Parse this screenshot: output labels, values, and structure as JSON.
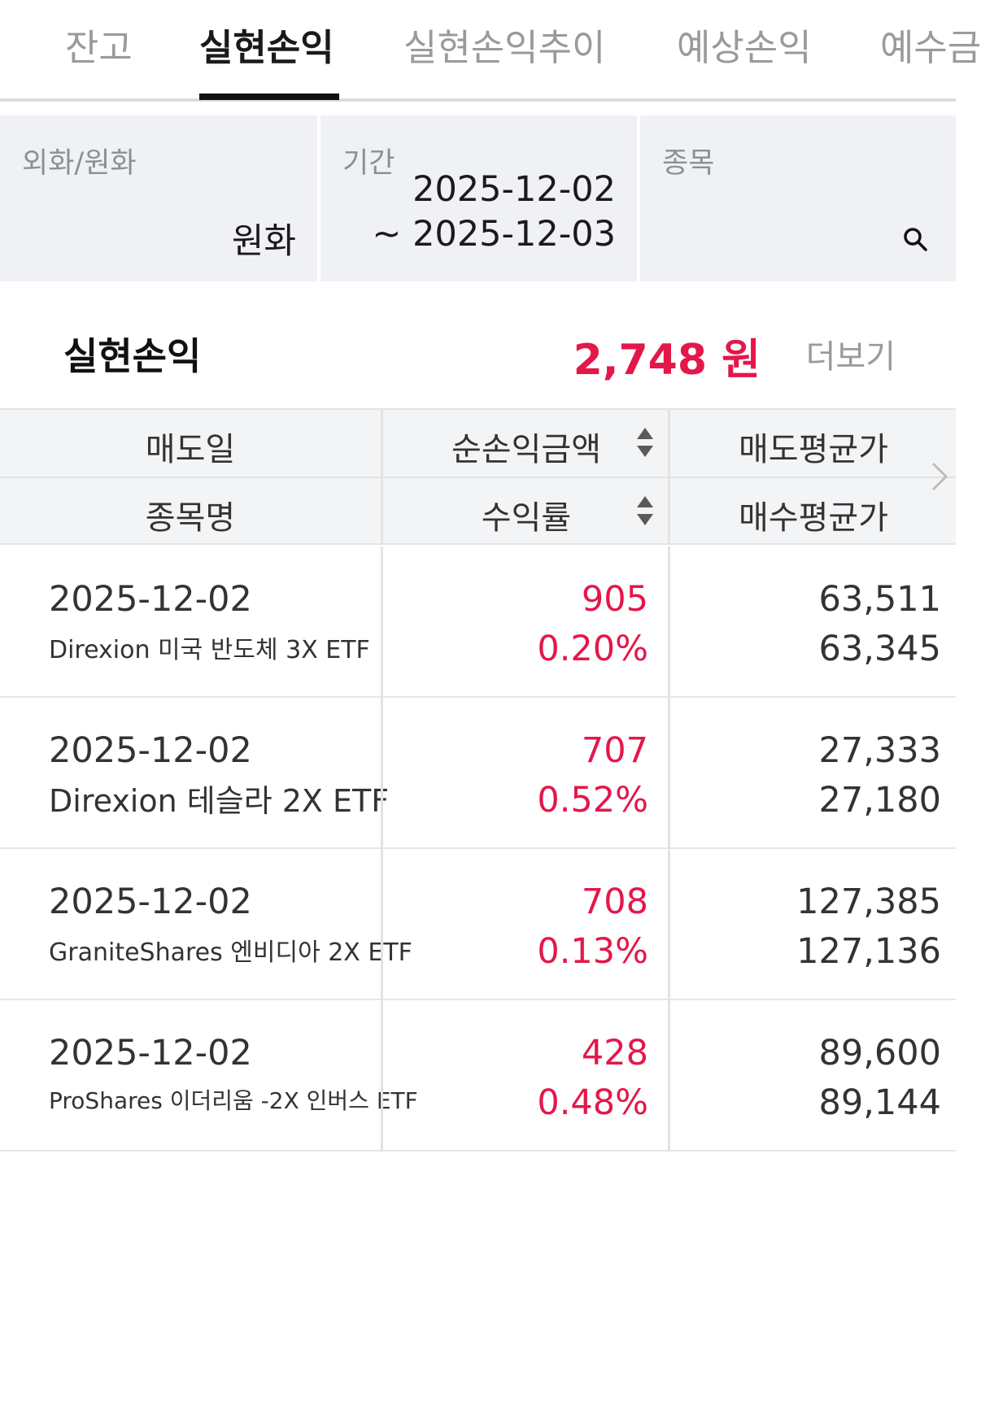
{
  "tabs": [
    {
      "label": "잔고",
      "active": false
    },
    {
      "label": "실현손익",
      "active": true
    },
    {
      "label": "실현손익추이",
      "active": false
    },
    {
      "label": "예상손익",
      "active": false
    },
    {
      "label": "예수금",
      "active": false
    }
  ],
  "filters": {
    "currency": {
      "label": "외화/원화",
      "value": "원화"
    },
    "period": {
      "label": "기간",
      "from": "2025-12-02",
      "to": "~ 2025-12-03"
    },
    "stock": {
      "label": "종목",
      "icon": "search-icon"
    }
  },
  "summary": {
    "title": "실현손익",
    "amount": "2,748 원",
    "more_label": "더보기"
  },
  "table": {
    "headers": {
      "sell_date": "매도일",
      "net_pl": "순손익금액",
      "sell_avg": "매도평균가",
      "stock_name": "종목명",
      "return_rate": "수익률",
      "buy_avg": "매수평균가"
    },
    "rows": [
      {
        "date": "2025-12-02",
        "name": "Direxion 미국 반도체 3X ETF",
        "pl": "905",
        "rate": "0.20%",
        "sell": "63,511",
        "buy": "63,345"
      },
      {
        "date": "2025-12-02",
        "name": "Direxion 테슬라 2X ETF",
        "pl": "707",
        "rate": "0.52%",
        "sell": "27,333",
        "buy": "27,180"
      },
      {
        "date": "2025-12-02",
        "name": "GraniteShares 엔비디아 2X ETF",
        "pl": "708",
        "rate": "0.13%",
        "sell": "127,385",
        "buy": "127,136"
      },
      {
        "date": "2025-12-02",
        "name": "ProShares 이더리움 -2X 인버스 ETF",
        "pl": "428",
        "rate": "0.48%",
        "sell": "89,600",
        "buy": "89,144"
      }
    ]
  },
  "colors": {
    "accent_red": "#e4174a",
    "filter_bg": "#eff1f4",
    "header_bg": "#f3f4f6"
  }
}
